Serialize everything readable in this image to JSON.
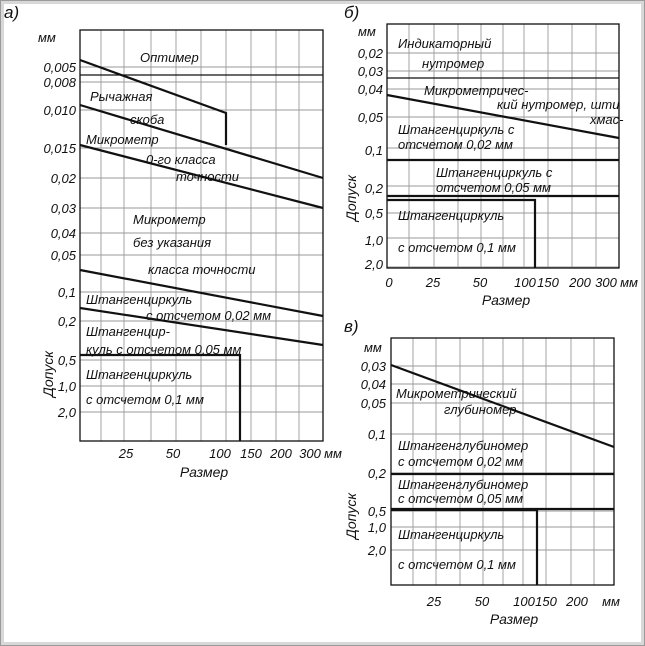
{
  "panels": [
    {
      "id": "a",
      "letter": "а)",
      "unit_y": "мм",
      "unit_x": "мм",
      "ylabel": "Допуск",
      "xlabel": "Размер",
      "y_ticks": [
        "0,005",
        "0,008",
        "0,010",
        "0,015",
        "0,02",
        "0,03",
        "0,04",
        "0,05",
        "0,1",
        "0,2",
        "0,5",
        "1,0",
        "2,0"
      ],
      "x_ticks": [
        "25",
        "50",
        "100",
        "150",
        "200",
        "300"
      ],
      "labels": [
        "Оптимер",
        "Рычажная",
        "скоба",
        "Микрометр",
        "0-го класса",
        "точности",
        "Микрометр",
        "без указания",
        "класса точности",
        "Штангенциркуль",
        "с отсчетом 0,02 мм",
        "Штангенцир-",
        "куль с отсчетом 0,05 мм",
        "Штангенциркуль",
        "с отсчетом 0,1 мм"
      ]
    },
    {
      "id": "b",
      "letter": "б)",
      "unit_y": "мм",
      "unit_x": "мм",
      "ylabel": "Допуск",
      "xlabel": "Размер",
      "y_ticks": [
        "0,02",
        "0,03",
        "0,04",
        "0,05",
        "0,1",
        "0,2",
        "0,5",
        "1,0",
        "2,0"
      ],
      "x_ticks": [
        "0",
        "25",
        "50",
        "100",
        "150",
        "200",
        "300"
      ],
      "labels": [
        "Индикаторный",
        "нутромер",
        "Микрометричес-",
        "кий нутромер, шти",
        "хмас-",
        "Штангенциркуль с",
        "отсчетом 0,02 мм",
        "Штангенциркуль с",
        "отсчетом 0,05 мм",
        "Штангенциркуль",
        "с отсчетом 0,1 мм"
      ]
    },
    {
      "id": "c",
      "letter": "в)",
      "unit_y": "мм",
      "unit_x": "мм",
      "ylabel": "Допуск",
      "xlabel": "Размер",
      "y_ticks": [
        "0,03",
        "0,04",
        "0,05",
        "0,1",
        "0,2",
        "0,5",
        "1,0",
        "2,0"
      ],
      "x_ticks": [
        "25",
        "50",
        "100",
        "150",
        "200"
      ],
      "labels": [
        "Микрометрический",
        "глубиномер",
        "Штангенглубиномер",
        "с отсчетом 0,02 мм",
        "Штангенглубиномер",
        "с отсчетом 0,05 мм",
        "Штангенциркуль",
        "с отсчетом 0,1 мм"
      ]
    }
  ]
}
